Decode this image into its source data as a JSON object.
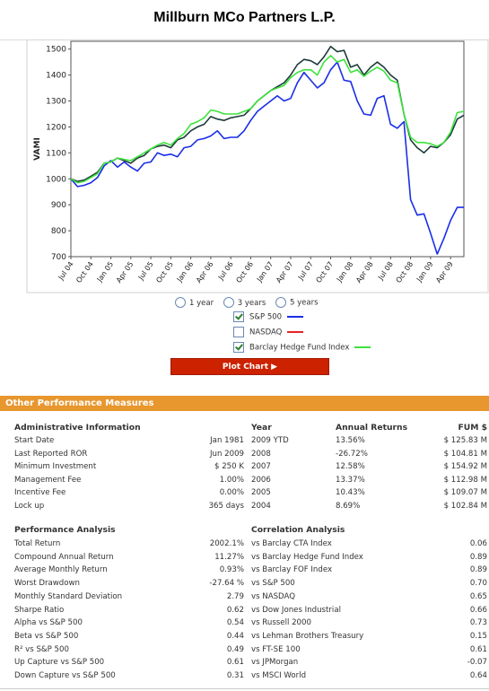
{
  "title": "Millburn MCo Partners L.P.",
  "chart_data": {
    "type": "line",
    "ylabel": "VAMI",
    "ylim": [
      700,
      1530
    ],
    "yticks": [
      700,
      800,
      900,
      1000,
      1100,
      1200,
      1300,
      1400,
      1500
    ],
    "xticks": [
      "Jul 04",
      "Oct 04",
      "Jan 05",
      "Apr 05",
      "Jul 05",
      "Oct 05",
      "Jan 06",
      "Apr 06",
      "Jul 06",
      "Oct 06",
      "Jan 07",
      "Apr 07",
      "Jul 07",
      "Oct 07",
      "Jan 08",
      "Apr 08",
      "Jul 08",
      "Oct 08",
      "Jan 09",
      "Apr 09"
    ],
    "x": [
      "Jul 04",
      "Aug 04",
      "Sep 04",
      "Oct 04",
      "Nov 04",
      "Dec 04",
      "Jan 05",
      "Feb 05",
      "Mar 05",
      "Apr 05",
      "May 05",
      "Jun 05",
      "Jul 05",
      "Aug 05",
      "Sep 05",
      "Oct 05",
      "Nov 05",
      "Dec 05",
      "Jan 06",
      "Feb 06",
      "Mar 06",
      "Apr 06",
      "May 06",
      "Jun 06",
      "Jul 06",
      "Aug 06",
      "Sep 06",
      "Oct 06",
      "Nov 06",
      "Dec 06",
      "Jan 07",
      "Feb 07",
      "Mar 07",
      "Apr 07",
      "May 07",
      "Jun 07",
      "Jul 07",
      "Aug 07",
      "Sep 07",
      "Oct 07",
      "Nov 07",
      "Dec 07",
      "Jan 08",
      "Feb 08",
      "Mar 08",
      "Apr 08",
      "May 08",
      "Jun 08",
      "Jul 08",
      "Aug 08",
      "Sep 08",
      "Oct 08",
      "Nov 08",
      "Dec 08",
      "Jan 09",
      "Feb 09",
      "Mar 09",
      "Apr 09",
      "May 09",
      "Jun 09"
    ],
    "series": [
      {
        "name": "MCo Partners",
        "color": "#1e3a3a",
        "values": [
          1000,
          990,
          995,
          1010,
          1025,
          1060,
          1065,
          1080,
          1070,
          1060,
          1080,
          1090,
          1115,
          1125,
          1130,
          1120,
          1150,
          1160,
          1185,
          1200,
          1210,
          1240,
          1230,
          1225,
          1235,
          1240,
          1245,
          1270,
          1300,
          1320,
          1340,
          1355,
          1370,
          1400,
          1440,
          1460,
          1455,
          1440,
          1470,
          1510,
          1490,
          1495,
          1430,
          1440,
          1400,
          1430,
          1450,
          1430,
          1400,
          1380,
          1250,
          1150,
          1120,
          1100,
          1125,
          1120,
          1140,
          1170,
          1230,
          1245
        ]
      },
      {
        "name": "S&P 500",
        "color": "#1a2ee8",
        "values": [
          1000,
          970,
          975,
          985,
          1005,
          1050,
          1070,
          1045,
          1065,
          1045,
          1030,
          1060,
          1065,
          1100,
          1090,
          1095,
          1085,
          1120,
          1125,
          1150,
          1155,
          1165,
          1185,
          1155,
          1160,
          1160,
          1185,
          1225,
          1260,
          1280,
          1300,
          1320,
          1300,
          1310,
          1370,
          1410,
          1380,
          1350,
          1370,
          1420,
          1450,
          1380,
          1375,
          1300,
          1250,
          1245,
          1310,
          1320,
          1210,
          1195,
          1220,
          920,
          860,
          865,
          790,
          710,
          770,
          840,
          890,
          890
        ]
      },
      {
        "name": "Barclay Hedge Fund Index",
        "color": "#3ce33c",
        "values": [
          1000,
          985,
          990,
          1005,
          1020,
          1060,
          1065,
          1080,
          1075,
          1070,
          1085,
          1100,
          1115,
          1130,
          1140,
          1130,
          1155,
          1175,
          1210,
          1220,
          1235,
          1265,
          1260,
          1250,
          1250,
          1250,
          1260,
          1270,
          1300,
          1320,
          1340,
          1350,
          1360,
          1390,
          1410,
          1420,
          1420,
          1400,
          1450,
          1475,
          1450,
          1460,
          1410,
          1420,
          1395,
          1415,
          1430,
          1415,
          1380,
          1370,
          1250,
          1160,
          1140,
          1140,
          1135,
          1125,
          1140,
          1180,
          1255,
          1260
        ]
      }
    ]
  },
  "controls": {
    "range_1": "1 year",
    "range_2": "3 years",
    "range_3": "5 years",
    "legend": [
      {
        "label": "S&P 500",
        "checked": true,
        "color": "#1a2ee8"
      },
      {
        "label": "NASDAQ",
        "checked": false,
        "color": "#e82222"
      },
      {
        "label": "Barclay Hedge Fund Index",
        "checked": true,
        "color": "#3ce33c"
      }
    ],
    "plot_button": "Plot Chart ▶"
  },
  "perf": {
    "section_title": "Other Performance Measures",
    "admin_header": "Administrative Information",
    "year_header": "Year",
    "annual_header": "Annual Returns",
    "fum_header": "FUM $",
    "admin_rows": [
      {
        "label": "Start Date",
        "value": "Jan 1981"
      },
      {
        "label": "Last Reported ROR",
        "value": "Jun 2009"
      },
      {
        "label": "Minimum Investment",
        "value": "$ 250 K"
      },
      {
        "label": "Management Fee",
        "value": "1.00%"
      },
      {
        "label": "Incentive Fee",
        "value": "0.00%"
      },
      {
        "label": "Lock up",
        "value": "365 days"
      }
    ],
    "annual_rows": [
      {
        "year": "2009 YTD",
        "ret": "13.56%",
        "fum": "$ 125.83 M"
      },
      {
        "year": "2008",
        "ret": "-26.72%",
        "fum": "$ 104.81 M"
      },
      {
        "year": "2007",
        "ret": "12.58%",
        "fum": "$ 154.92 M"
      },
      {
        "year": "2006",
        "ret": "13.37%",
        "fum": "$ 112.98 M"
      },
      {
        "year": "2005",
        "ret": "10.43%",
        "fum": "$ 109.07 M"
      },
      {
        "year": "2004",
        "ret": "8.69%",
        "fum": "$ 102.84 M"
      }
    ],
    "analysis_header": "Performance Analysis",
    "corr_header": "Correlation Analysis",
    "analysis_rows": [
      {
        "label": "Total Return",
        "value": "2002.1%"
      },
      {
        "label": "Compound Annual Return",
        "value": "11.27%"
      },
      {
        "label": "Average Monthly Return",
        "value": "0.93%"
      },
      {
        "label": "Worst Drawdown",
        "value": "-27.64 %"
      },
      {
        "label": "Monthly Standard Deviation",
        "value": "2.79"
      },
      {
        "label": "Sharpe Ratio",
        "value": "0.62"
      },
      {
        "label": "Alpha vs S&P 500",
        "value": "0.54"
      },
      {
        "label": "Beta vs S&P 500",
        "value": "0.44"
      },
      {
        "label": "R² vs S&P 500",
        "value": "0.49"
      },
      {
        "label": "Up Capture vs S&P 500",
        "value": "0.61"
      },
      {
        "label": "Down Capture vs S&P 500",
        "value": "0.31"
      }
    ],
    "corr_rows": [
      {
        "label": "vs Barclay CTA Index",
        "value": "0.06"
      },
      {
        "label": "vs Barclay Hedge Fund Index",
        "value": "0.89"
      },
      {
        "label": "vs Barclay FOF Index",
        "value": "0.89"
      },
      {
        "label": "vs S&P 500",
        "value": "0.70"
      },
      {
        "label": "vs NASDAQ",
        "value": "0.65"
      },
      {
        "label": "vs Dow Jones Industrial",
        "value": "0.66"
      },
      {
        "label": "vs Russell 2000",
        "value": "0.73"
      },
      {
        "label": "vs Lehman Brothers Treasury",
        "value": "0.15"
      },
      {
        "label": "vs FT-SE 100",
        "value": "0.61"
      },
      {
        "label": "vs JPMorgan",
        "value": "-0.07"
      },
      {
        "label": "vs MSCI World",
        "value": "0.64"
      }
    ]
  }
}
